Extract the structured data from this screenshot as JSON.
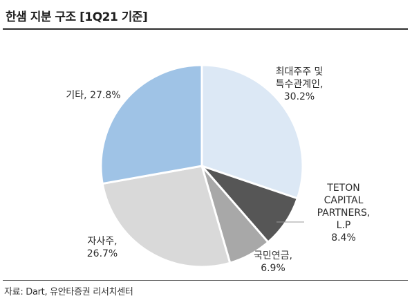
{
  "title": "한샘 지분 구조 [1Q21 기준]",
  "source": "자료: Dart, 유안타증권 리서치센터",
  "chart_data": {
    "type": "pie",
    "title": "한샘 지분 구조 [1Q21 기준]",
    "slices": [
      {
        "label": "최대주주 및 특수관계인",
        "value": 30.2,
        "value_text": "30.2%",
        "color": "#dce8f5",
        "label_lines": [
          "최대주주 및",
          "특수관계인,",
          "30.2%"
        ]
      },
      {
        "label": "TETON CAPITAL PARTNERS, L.P",
        "value": 8.4,
        "value_text": "8.4%",
        "color": "#565656",
        "label_lines": [
          "TETON",
          "CAPITAL",
          "PARTNERS,",
          "L.P",
          "8.4%"
        ]
      },
      {
        "label": "국민연금",
        "value": 6.9,
        "value_text": "6.9%",
        "color": "#a8a8a8",
        "label_lines": [
          "국민연금,",
          "6.9%"
        ]
      },
      {
        "label": "자사주",
        "value": 26.7,
        "value_text": "26.7%",
        "color": "#d9d9d9",
        "label_lines": [
          "자사주,",
          "26.7%"
        ]
      },
      {
        "label": "기타",
        "value": 27.8,
        "value_text": "27.8%",
        "color": "#9fc3e6",
        "label_lines": [
          "기타, 27.8%"
        ]
      }
    ]
  }
}
